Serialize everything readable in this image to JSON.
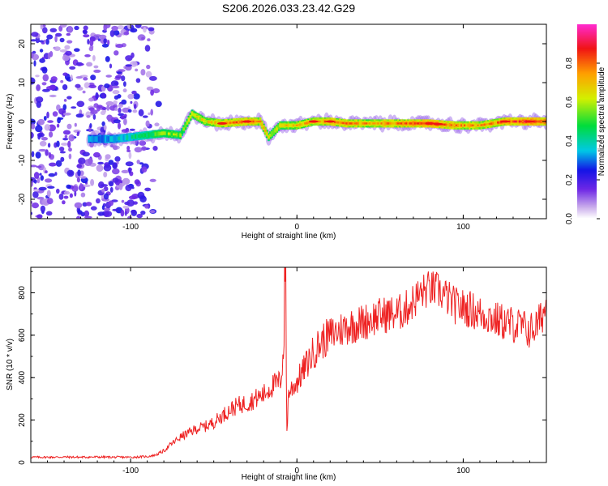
{
  "page": {
    "title": "S206.2026.033.23.42.G29"
  },
  "chart_data": [
    {
      "type": "heatmap",
      "id": "spectrogram",
      "title": "S206.2026.033.23.42.G29",
      "xlabel": "Height of straight line (km)",
      "ylabel": "Frequency (Hz)",
      "xlim": [
        -160,
        150
      ],
      "ylim": [
        -25,
        25
      ],
      "xticks": [
        -100,
        0,
        100
      ],
      "yticks": [
        -20,
        -10,
        0,
        10,
        20
      ],
      "colorbar": {
        "label": "Normalized spectral amplitude",
        "range": [
          0,
          1
        ],
        "ticks": [
          0.0,
          0.2,
          0.4,
          0.6,
          0.8
        ]
      },
      "ridge": [
        {
          "x": -125,
          "y": -4.5,
          "amp": 0.3
        },
        {
          "x": -110,
          "y": -4.5,
          "amp": 0.35
        },
        {
          "x": -100,
          "y": -4,
          "amp": 0.4
        },
        {
          "x": -90,
          "y": -3.5,
          "amp": 0.45
        },
        {
          "x": -80,
          "y": -3,
          "amp": 0.55
        },
        {
          "x": -70,
          "y": -3.5,
          "amp": 0.55
        },
        {
          "x": -63,
          "y": 2,
          "amp": 0.6
        },
        {
          "x": -55,
          "y": 0,
          "amp": 0.65
        },
        {
          "x": -45,
          "y": -0.5,
          "amp": 0.75
        },
        {
          "x": -30,
          "y": 0,
          "amp": 0.85
        },
        {
          "x": -22,
          "y": 0,
          "amp": 0.75
        },
        {
          "x": -17,
          "y": -4,
          "amp": 0.6
        },
        {
          "x": -10,
          "y": -1,
          "amp": 0.65
        },
        {
          "x": 0,
          "y": -1,
          "amp": 0.7
        },
        {
          "x": 10,
          "y": 0,
          "amp": 0.75
        },
        {
          "x": 20,
          "y": 0,
          "amp": 0.8
        },
        {
          "x": 30,
          "y": -0.5,
          "amp": 0.8
        },
        {
          "x": 40,
          "y": -0.5,
          "amp": 0.75
        },
        {
          "x": 60,
          "y": -0.5,
          "amp": 0.8
        },
        {
          "x": 80,
          "y": -0.5,
          "amp": 0.9
        },
        {
          "x": 95,
          "y": -1,
          "amp": 0.8
        },
        {
          "x": 110,
          "y": -1,
          "amp": 0.75
        },
        {
          "x": 125,
          "y": 0,
          "amp": 0.85
        },
        {
          "x": 140,
          "y": 0,
          "amp": 0.95
        },
        {
          "x": 150,
          "y": 0,
          "amp": 0.9
        }
      ],
      "noise_region_x": [
        -160,
        -80
      ]
    },
    {
      "type": "line",
      "id": "snr",
      "xlabel": "Height of straight line (km)",
      "ylabel": "SNR (10 * v/v)",
      "xlim": [
        -160,
        150
      ],
      "ylim": [
        0,
        920
      ],
      "xticks": [
        -100,
        0,
        100
      ],
      "yticks": [
        0,
        200,
        400,
        600,
        800
      ],
      "series": [
        {
          "name": "SNR",
          "color": "#ee2222",
          "x": [
            -160,
            -150,
            -140,
            -130,
            -120,
            -110,
            -100,
            -90,
            -85,
            -80,
            -75,
            -70,
            -65,
            -60,
            -55,
            -50,
            -45,
            -40,
            -35,
            -30,
            -25,
            -20,
            -15,
            -10,
            -8,
            -7,
            -6,
            -5,
            0,
            5,
            10,
            15,
            20,
            25,
            30,
            35,
            40,
            45,
            50,
            55,
            60,
            65,
            70,
            75,
            80,
            85,
            90,
            95,
            100,
            105,
            110,
            115,
            120,
            125,
            130,
            135,
            140,
            145,
            150
          ],
          "y": [
            25,
            25,
            26,
            25,
            26,
            25,
            25,
            28,
            35,
            55,
            90,
            120,
            140,
            160,
            170,
            190,
            220,
            250,
            270,
            280,
            300,
            320,
            360,
            380,
            520,
            900,
            150,
            330,
            380,
            450,
            520,
            570,
            600,
            620,
            640,
            650,
            660,
            680,
            690,
            700,
            700,
            720,
            760,
            800,
            820,
            810,
            780,
            740,
            730,
            720,
            700,
            690,
            670,
            660,
            650,
            640,
            620,
            650,
            740
          ]
        }
      ]
    }
  ]
}
